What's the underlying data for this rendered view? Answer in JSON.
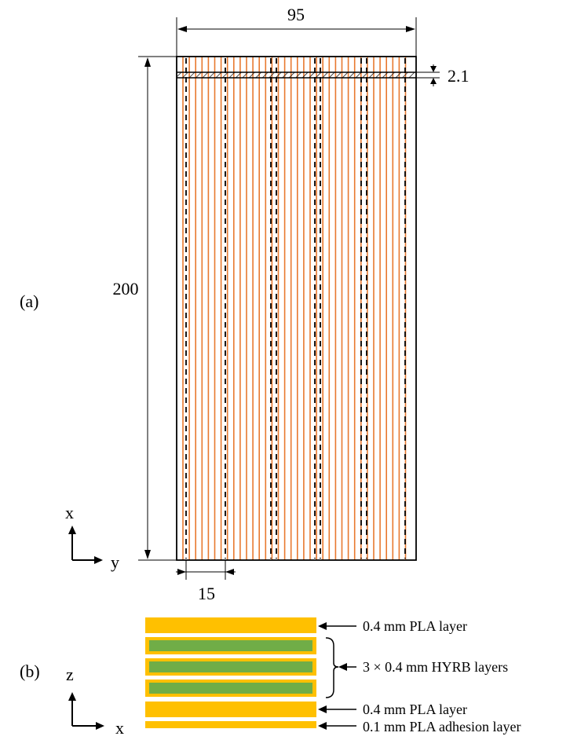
{
  "panel_a": {
    "label": "(a)",
    "dim_width": "95",
    "dim_height": "200",
    "dim_thickness": "2.1",
    "dim_spacing": "15",
    "axis_vertical": "x",
    "axis_horizontal": "y",
    "fiber_color": "#e8792f",
    "outline_color": "#000000"
  },
  "panel_b": {
    "label": "(b)",
    "axis_vertical": "z",
    "axis_horizontal": "x",
    "pla_color": "#ffc000",
    "hyrb_color": "#70ad47",
    "labels": {
      "top_pla": "0.4 mm PLA layer",
      "hyrb": "3 × 0.4 mm HYRB layers",
      "bottom_pla": "0.4 mm PLA layer",
      "adhesion": "0.1 mm PLA adhesion layer"
    }
  }
}
